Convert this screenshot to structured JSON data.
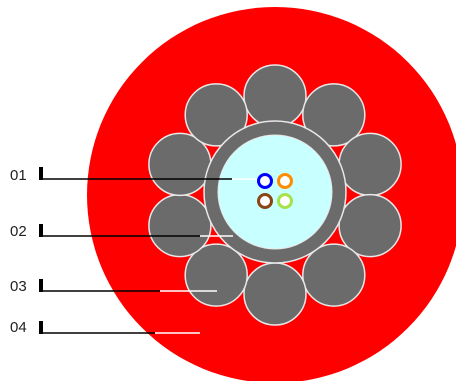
{
  "diagram": {
    "callouts": [
      {
        "label": "01",
        "part": "optical-fibers"
      },
      {
        "label": "02",
        "part": "inner-tube"
      },
      {
        "label": "03",
        "part": "steel-wires"
      },
      {
        "label": "04",
        "part": "outer-sheath"
      }
    ],
    "colors": {
      "outer_sheath": "#ff0000",
      "strand": "#6b6b6b",
      "strand_outline": "#e8e8e8",
      "tube_fill": "#c8ffff",
      "leader_line": "#000000",
      "leader_line_inner": "#ffffff",
      "fiber_colors": [
        "#0000ff",
        "#ff8c00",
        "#8b4513",
        "#a6e34a"
      ]
    },
    "strand_count": 10,
    "fiber_count": 4
  }
}
